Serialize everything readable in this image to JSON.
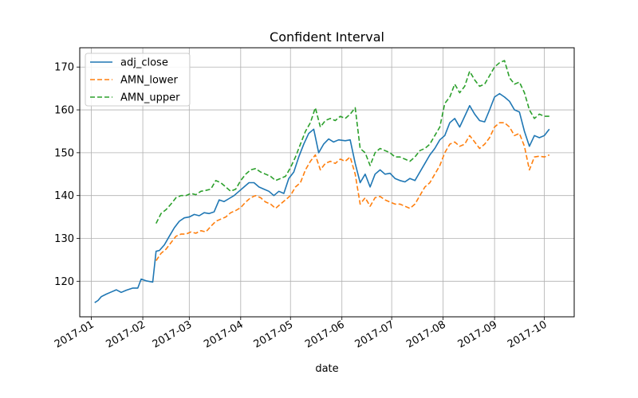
{
  "chart_data": {
    "type": "line",
    "title": "Confident Interval",
    "xlabel": "date",
    "ylabel": "",
    "xlim": [
      "2016-12-25",
      "2017-10-19"
    ],
    "ylim": [
      111.7,
      174.5
    ],
    "yticks": [
      120,
      130,
      140,
      150,
      160,
      170
    ],
    "xticks": [
      {
        "date": "2017-01-01",
        "label": "2017-01"
      },
      {
        "date": "2017-02-01",
        "label": "2017-02"
      },
      {
        "date": "2017-03-01",
        "label": "2017-03"
      },
      {
        "date": "2017-04-01",
        "label": "2017-04"
      },
      {
        "date": "2017-05-01",
        "label": "2017-05"
      },
      {
        "date": "2017-06-01",
        "label": "2017-06"
      },
      {
        "date": "2017-07-01",
        "label": "2017-07"
      },
      {
        "date": "2017-08-01",
        "label": "2017-08"
      },
      {
        "date": "2017-09-01",
        "label": "2017-09"
      },
      {
        "date": "2017-10-01",
        "label": "2017-10"
      }
    ],
    "grid": true,
    "legend_position": "top-left",
    "series": [
      {
        "name": "adj_close",
        "color": "#1f77b4",
        "dash": "solid",
        "points": [
          [
            "2017-01-03",
            115
          ],
          [
            "2017-01-05",
            115.5
          ],
          [
            "2017-01-07",
            116.4
          ],
          [
            "2017-01-10",
            117
          ],
          [
            "2017-01-13",
            117.5
          ],
          [
            "2017-01-16",
            118
          ],
          [
            "2017-01-19",
            117.4
          ],
          [
            "2017-01-22",
            117.9
          ],
          [
            "2017-01-26",
            118.4
          ],
          [
            "2017-01-29",
            118.4
          ],
          [
            "2017-01-31",
            120.5
          ],
          [
            "2017-02-03",
            120.1
          ],
          [
            "2017-02-07",
            119.8
          ],
          [
            "2017-02-09",
            127
          ],
          [
            "2017-02-11",
            127.2
          ],
          [
            "2017-02-14",
            128.5
          ],
          [
            "2017-02-17",
            130.5
          ],
          [
            "2017-02-20",
            132.5
          ],
          [
            "2017-02-23",
            134
          ],
          [
            "2017-02-26",
            134.8
          ],
          [
            "2017-03-01",
            135
          ],
          [
            "2017-03-04",
            135.6
          ],
          [
            "2017-03-07",
            135.3
          ],
          [
            "2017-03-10",
            136
          ],
          [
            "2017-03-13",
            135.8
          ],
          [
            "2017-03-16",
            136.2
          ],
          [
            "2017-03-19",
            139
          ],
          [
            "2017-03-22",
            138.6
          ],
          [
            "2017-03-25",
            139.3
          ],
          [
            "2017-03-28",
            140
          ],
          [
            "2017-03-31",
            141
          ],
          [
            "2017-04-03",
            142
          ],
          [
            "2017-04-06",
            143
          ],
          [
            "2017-04-09",
            143
          ],
          [
            "2017-04-12",
            142
          ],
          [
            "2017-04-15",
            141.5
          ],
          [
            "2017-04-18",
            141
          ],
          [
            "2017-04-21",
            140
          ],
          [
            "2017-04-24",
            141
          ],
          [
            "2017-04-27",
            140.5
          ],
          [
            "2017-04-30",
            144
          ],
          [
            "2017-05-03",
            145.5
          ],
          [
            "2017-05-06",
            149
          ],
          [
            "2017-05-09",
            152
          ],
          [
            "2017-05-12",
            154.5
          ],
          [
            "2017-05-15",
            155.5
          ],
          [
            "2017-05-18",
            150
          ],
          [
            "2017-05-21",
            152
          ],
          [
            "2017-05-24",
            153.2
          ],
          [
            "2017-05-27",
            152.5
          ],
          [
            "2017-05-30",
            153
          ],
          [
            "2017-06-03",
            152.8
          ],
          [
            "2017-06-06",
            153
          ],
          [
            "2017-06-09",
            147.5
          ],
          [
            "2017-06-12",
            143
          ],
          [
            "2017-06-15",
            145
          ],
          [
            "2017-06-18",
            142
          ],
          [
            "2017-06-21",
            145
          ],
          [
            "2017-06-24",
            146
          ],
          [
            "2017-06-27",
            145
          ],
          [
            "2017-06-30",
            145.2
          ],
          [
            "2017-07-03",
            144
          ],
          [
            "2017-07-06",
            143.5
          ],
          [
            "2017-07-09",
            143.2
          ],
          [
            "2017-07-12",
            144
          ],
          [
            "2017-07-15",
            143.5
          ],
          [
            "2017-07-18",
            145.5
          ],
          [
            "2017-07-21",
            147.5
          ],
          [
            "2017-07-24",
            149.5
          ],
          [
            "2017-07-27",
            151
          ],
          [
            "2017-07-30",
            153
          ],
          [
            "2017-08-02",
            154
          ],
          [
            "2017-08-05",
            157
          ],
          [
            "2017-08-08",
            158
          ],
          [
            "2017-08-11",
            156
          ],
          [
            "2017-08-14",
            158.5
          ],
          [
            "2017-08-17",
            161
          ],
          [
            "2017-08-20",
            159
          ],
          [
            "2017-08-23",
            157.5
          ],
          [
            "2017-08-26",
            157.2
          ],
          [
            "2017-08-29",
            160
          ],
          [
            "2017-09-01",
            163
          ],
          [
            "2017-09-04",
            163.8
          ],
          [
            "2017-09-07",
            163
          ],
          [
            "2017-09-10",
            162
          ],
          [
            "2017-09-13",
            160
          ],
          [
            "2017-09-16",
            159.5
          ],
          [
            "2017-09-19",
            155
          ],
          [
            "2017-09-22",
            151.5
          ],
          [
            "2017-09-25",
            154
          ],
          [
            "2017-09-28",
            153.5
          ],
          [
            "2017-10-01",
            154
          ],
          [
            "2017-10-04",
            155.5
          ]
        ]
      },
      {
        "name": "AMN_lower",
        "color": "#ff7f0e",
        "dash": "dashed",
        "points": [
          [
            "2017-02-09",
            124.8
          ],
          [
            "2017-02-12",
            126.5
          ],
          [
            "2017-02-15",
            127.5
          ],
          [
            "2017-02-18",
            129
          ],
          [
            "2017-02-21",
            130.5
          ],
          [
            "2017-02-24",
            131
          ],
          [
            "2017-02-27",
            131
          ],
          [
            "2017-03-02",
            131.5
          ],
          [
            "2017-03-05",
            131.2
          ],
          [
            "2017-03-08",
            131.8
          ],
          [
            "2017-03-11",
            131.5
          ],
          [
            "2017-03-14",
            132.8
          ],
          [
            "2017-03-17",
            134
          ],
          [
            "2017-03-20",
            134.5
          ],
          [
            "2017-03-23",
            135
          ],
          [
            "2017-03-26",
            136
          ],
          [
            "2017-03-29",
            136.5
          ],
          [
            "2017-04-01",
            137.2
          ],
          [
            "2017-04-04",
            138.5
          ],
          [
            "2017-04-07",
            139.5
          ],
          [
            "2017-04-10",
            140
          ],
          [
            "2017-04-13",
            139.5
          ],
          [
            "2017-04-16",
            138.5
          ],
          [
            "2017-04-19",
            138
          ],
          [
            "2017-04-22",
            137
          ],
          [
            "2017-04-25",
            138
          ],
          [
            "2017-04-28",
            139
          ],
          [
            "2017-05-01",
            140
          ],
          [
            "2017-05-04",
            142
          ],
          [
            "2017-05-07",
            143
          ],
          [
            "2017-05-10",
            146
          ],
          [
            "2017-05-13",
            148
          ],
          [
            "2017-05-16",
            149.5
          ],
          [
            "2017-05-19",
            146
          ],
          [
            "2017-05-22",
            147.5
          ],
          [
            "2017-05-25",
            148
          ],
          [
            "2017-05-28",
            147.5
          ],
          [
            "2017-05-31",
            148.5
          ],
          [
            "2017-06-03",
            148
          ],
          [
            "2017-06-06",
            149
          ],
          [
            "2017-06-09",
            145
          ],
          [
            "2017-06-12",
            138
          ],
          [
            "2017-06-15",
            139.5
          ],
          [
            "2017-06-18",
            137.5
          ],
          [
            "2017-06-21",
            139.5
          ],
          [
            "2017-06-24",
            139.8
          ],
          [
            "2017-06-27",
            139
          ],
          [
            "2017-06-30",
            138.5
          ],
          [
            "2017-07-03",
            138
          ],
          [
            "2017-07-06",
            138
          ],
          [
            "2017-07-09",
            137.5
          ],
          [
            "2017-07-12",
            137
          ],
          [
            "2017-07-15",
            138
          ],
          [
            "2017-07-18",
            140
          ],
          [
            "2017-07-21",
            142
          ],
          [
            "2017-07-24",
            143
          ],
          [
            "2017-07-27",
            145
          ],
          [
            "2017-07-30",
            147
          ],
          [
            "2017-08-02",
            150
          ],
          [
            "2017-08-05",
            152
          ],
          [
            "2017-08-08",
            152.5
          ],
          [
            "2017-08-11",
            151.5
          ],
          [
            "2017-08-14",
            152
          ],
          [
            "2017-08-17",
            154
          ],
          [
            "2017-08-20",
            152.5
          ],
          [
            "2017-08-23",
            151
          ],
          [
            "2017-08-26",
            152
          ],
          [
            "2017-08-29",
            153.5
          ],
          [
            "2017-09-01",
            156
          ],
          [
            "2017-09-04",
            157
          ],
          [
            "2017-09-07",
            157
          ],
          [
            "2017-09-10",
            156
          ],
          [
            "2017-09-13",
            154
          ],
          [
            "2017-09-16",
            154.5
          ],
          [
            "2017-09-19",
            151.5
          ],
          [
            "2017-09-22",
            146
          ],
          [
            "2017-09-25",
            149
          ],
          [
            "2017-09-28",
            149.2
          ],
          [
            "2017-10-01",
            149
          ],
          [
            "2017-10-04",
            149.5
          ]
        ]
      },
      {
        "name": "AMN_upper",
        "color": "#2ca02c",
        "dash": "dashed",
        "points": [
          [
            "2017-02-09",
            133.5
          ],
          [
            "2017-02-12",
            135.8
          ],
          [
            "2017-02-15",
            136.7
          ],
          [
            "2017-02-18",
            138
          ],
          [
            "2017-02-21",
            139.5
          ],
          [
            "2017-02-24",
            140
          ],
          [
            "2017-02-27",
            140
          ],
          [
            "2017-03-02",
            140.5
          ],
          [
            "2017-03-05",
            140.2
          ],
          [
            "2017-03-08",
            141
          ],
          [
            "2017-03-11",
            141.2
          ],
          [
            "2017-03-14",
            141.5
          ],
          [
            "2017-03-17",
            143.5
          ],
          [
            "2017-03-20",
            143
          ],
          [
            "2017-03-23",
            142
          ],
          [
            "2017-03-26",
            141
          ],
          [
            "2017-03-29",
            141.5
          ],
          [
            "2017-04-01",
            143.5
          ],
          [
            "2017-04-04",
            145
          ],
          [
            "2017-04-07",
            146
          ],
          [
            "2017-04-10",
            146.3
          ],
          [
            "2017-04-13",
            145.5
          ],
          [
            "2017-04-16",
            145
          ],
          [
            "2017-04-19",
            144.5
          ],
          [
            "2017-04-22",
            143.5
          ],
          [
            "2017-04-25",
            144
          ],
          [
            "2017-04-28",
            144.5
          ],
          [
            "2017-05-01",
            146.5
          ],
          [
            "2017-05-04",
            149
          ],
          [
            "2017-05-07",
            152
          ],
          [
            "2017-05-10",
            155
          ],
          [
            "2017-05-13",
            157
          ],
          [
            "2017-05-16",
            160.5
          ],
          [
            "2017-05-19",
            156
          ],
          [
            "2017-05-22",
            157.5
          ],
          [
            "2017-05-25",
            158
          ],
          [
            "2017-05-28",
            157.5
          ],
          [
            "2017-05-31",
            158.5
          ],
          [
            "2017-06-03",
            158
          ],
          [
            "2017-06-06",
            159
          ],
          [
            "2017-06-09",
            160.5
          ],
          [
            "2017-06-12",
            151
          ],
          [
            "2017-06-15",
            150
          ],
          [
            "2017-06-18",
            147
          ],
          [
            "2017-06-21",
            150
          ],
          [
            "2017-06-24",
            151
          ],
          [
            "2017-06-27",
            150.5
          ],
          [
            "2017-06-30",
            150
          ],
          [
            "2017-07-03",
            149
          ],
          [
            "2017-07-06",
            149
          ],
          [
            "2017-07-09",
            148.5
          ],
          [
            "2017-07-12",
            148
          ],
          [
            "2017-07-15",
            149
          ],
          [
            "2017-07-18",
            150.5
          ],
          [
            "2017-07-21",
            151
          ],
          [
            "2017-07-24",
            152
          ],
          [
            "2017-07-27",
            154
          ],
          [
            "2017-07-30",
            156
          ],
          [
            "2017-08-02",
            161.5
          ],
          [
            "2017-08-05",
            163
          ],
          [
            "2017-08-08",
            166
          ],
          [
            "2017-08-11",
            164
          ],
          [
            "2017-08-14",
            165.5
          ],
          [
            "2017-08-17",
            169
          ],
          [
            "2017-08-20",
            167
          ],
          [
            "2017-08-23",
            165.5
          ],
          [
            "2017-08-26",
            166
          ],
          [
            "2017-08-29",
            168
          ],
          [
            "2017-09-01",
            170
          ],
          [
            "2017-09-04",
            171
          ],
          [
            "2017-09-07",
            171.5
          ],
          [
            "2017-09-10",
            167.5
          ],
          [
            "2017-09-13",
            166
          ],
          [
            "2017-09-16",
            166.5
          ],
          [
            "2017-09-19",
            164
          ],
          [
            "2017-09-22",
            160
          ],
          [
            "2017-09-25",
            158
          ],
          [
            "2017-09-28",
            159
          ],
          [
            "2017-10-01",
            158.5
          ],
          [
            "2017-10-04",
            158.5
          ]
        ]
      }
    ]
  }
}
